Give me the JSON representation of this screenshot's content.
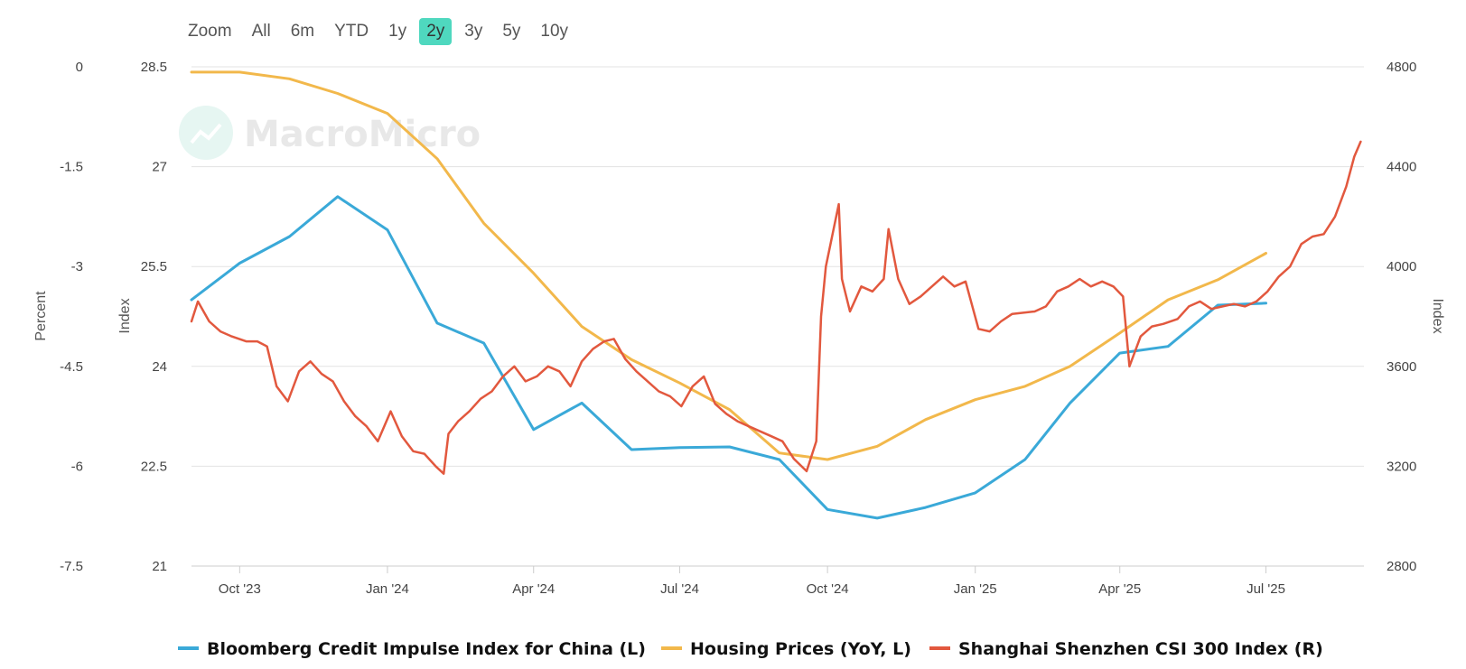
{
  "zoom": {
    "label": "Zoom",
    "buttons": [
      "All",
      "6m",
      "YTD",
      "1y",
      "2y",
      "3y",
      "5y",
      "10y"
    ],
    "active": "2y",
    "active_color": "#4fd8bf"
  },
  "watermark": {
    "text": "MacroMicro"
  },
  "chart_data": {
    "type": "line",
    "x_ticks": [
      "Oct '23",
      "Jan '24",
      "Apr '24",
      "Jul '24",
      "Oct '24",
      "Jan '25",
      "Apr '25",
      "Jul '25"
    ],
    "x_tick_dates": [
      "2023-10-01",
      "2024-01-01",
      "2024-04-01",
      "2024-07-01",
      "2024-10-01",
      "2025-01-01",
      "2025-04-01",
      "2025-07-01"
    ],
    "x_range": [
      "2023-09-01",
      "2025-08-31"
    ],
    "axes": {
      "percent": {
        "label": "Percent",
        "ticks": [
          "0",
          "-1.5",
          "-3",
          "-4.5",
          "-6",
          "-7.5"
        ],
        "range": [
          -7.5,
          0
        ]
      },
      "index_left": {
        "label": "Index",
        "ticks": [
          "28.5",
          "27",
          "25.5",
          "24",
          "22.5",
          "21"
        ],
        "range": [
          21,
          28.5
        ]
      },
      "index_right": {
        "label": "Index",
        "ticks": [
          "4800",
          "4400",
          "4000",
          "3600",
          "3200",
          "2800"
        ],
        "range": [
          2800,
          4800
        ]
      }
    },
    "grid": true,
    "legend_position": "bottom",
    "series": [
      {
        "name": "Bloomberg Credit Impulse Index for China (L)",
        "color": "#3aa9d8",
        "axis": "index_left",
        "points": [
          [
            "2023-09-01",
            25.0
          ],
          [
            "2023-10-01",
            25.55
          ],
          [
            "2023-11-01",
            25.95
          ],
          [
            "2023-12-01",
            26.55
          ],
          [
            "2024-01-01",
            26.05
          ],
          [
            "2024-02-01",
            24.65
          ],
          [
            "2024-03-01",
            24.35
          ],
          [
            "2024-04-01",
            23.05
          ],
          [
            "2024-05-01",
            23.45
          ],
          [
            "2024-06-01",
            22.75
          ],
          [
            "2024-07-01",
            22.78
          ],
          [
            "2024-08-01",
            22.79
          ],
          [
            "2024-09-01",
            22.6
          ],
          [
            "2024-10-01",
            21.85
          ],
          [
            "2024-11-01",
            21.72
          ],
          [
            "2024-12-01",
            21.88
          ],
          [
            "2025-01-01",
            22.1
          ],
          [
            "2025-02-01",
            22.6
          ],
          [
            "2025-03-01",
            23.45
          ],
          [
            "2025-04-01",
            24.2
          ],
          [
            "2025-05-01",
            24.3
          ],
          [
            "2025-06-01",
            24.92
          ],
          [
            "2025-07-01",
            24.95
          ]
        ]
      },
      {
        "name": "Housing Prices (YoY, L)",
        "color": "#f2b84b",
        "axis": "index_left",
        "points": [
          [
            "2023-09-01",
            28.42
          ],
          [
            "2023-10-01",
            28.42
          ],
          [
            "2023-11-01",
            28.32
          ],
          [
            "2023-12-01",
            28.1
          ],
          [
            "2024-01-01",
            27.8
          ],
          [
            "2024-02-01",
            27.12
          ],
          [
            "2024-03-01",
            26.15
          ],
          [
            "2024-04-01",
            25.4
          ],
          [
            "2024-05-01",
            24.6
          ],
          [
            "2024-06-01",
            24.1
          ],
          [
            "2024-07-01",
            23.75
          ],
          [
            "2024-08-01",
            23.35
          ],
          [
            "2024-09-01",
            22.7
          ],
          [
            "2024-10-01",
            22.6
          ],
          [
            "2024-11-01",
            22.8
          ],
          [
            "2024-12-01",
            23.2
          ],
          [
            "2025-01-01",
            23.5
          ],
          [
            "2025-02-01",
            23.7
          ],
          [
            "2025-03-01",
            24.0
          ],
          [
            "2025-04-01",
            24.5
          ],
          [
            "2025-05-01",
            25.0
          ],
          [
            "2025-06-01",
            25.3
          ],
          [
            "2025-07-01",
            25.7
          ]
        ]
      },
      {
        "name": "Shanghai Shenzhen CSI 300 Index (R)",
        "color": "#e2583e",
        "axis": "index_right",
        "points": [
          [
            "2023-09-01",
            3780
          ],
          [
            "2023-09-05",
            3860
          ],
          [
            "2023-09-12",
            3780
          ],
          [
            "2023-09-19",
            3740
          ],
          [
            "2023-09-26",
            3720
          ],
          [
            "2023-10-05",
            3700
          ],
          [
            "2023-10-12",
            3700
          ],
          [
            "2023-10-18",
            3680
          ],
          [
            "2023-10-24",
            3520
          ],
          [
            "2023-10-31",
            3460
          ],
          [
            "2023-11-07",
            3580
          ],
          [
            "2023-11-14",
            3620
          ],
          [
            "2023-11-21",
            3570
          ],
          [
            "2023-11-28",
            3540
          ],
          [
            "2023-12-05",
            3460
          ],
          [
            "2023-12-12",
            3400
          ],
          [
            "2023-12-19",
            3360
          ],
          [
            "2023-12-26",
            3300
          ],
          [
            "2024-01-03",
            3420
          ],
          [
            "2024-01-10",
            3320
          ],
          [
            "2024-01-17",
            3260
          ],
          [
            "2024-01-24",
            3250
          ],
          [
            "2024-01-31",
            3200
          ],
          [
            "2024-02-05",
            3170
          ],
          [
            "2024-02-08",
            3330
          ],
          [
            "2024-02-14",
            3380
          ],
          [
            "2024-02-21",
            3420
          ],
          [
            "2024-02-28",
            3470
          ],
          [
            "2024-03-06",
            3500
          ],
          [
            "2024-03-13",
            3560
          ],
          [
            "2024-03-20",
            3600
          ],
          [
            "2024-03-27",
            3540
          ],
          [
            "2024-04-03",
            3560
          ],
          [
            "2024-04-10",
            3600
          ],
          [
            "2024-04-17",
            3580
          ],
          [
            "2024-04-24",
            3520
          ],
          [
            "2024-05-01",
            3620
          ],
          [
            "2024-05-08",
            3670
          ],
          [
            "2024-05-15",
            3700
          ],
          [
            "2024-05-21",
            3710
          ],
          [
            "2024-05-28",
            3630
          ],
          [
            "2024-06-04",
            3580
          ],
          [
            "2024-06-11",
            3540
          ],
          [
            "2024-06-18",
            3500
          ],
          [
            "2024-06-25",
            3480
          ],
          [
            "2024-07-02",
            3440
          ],
          [
            "2024-07-09",
            3520
          ],
          [
            "2024-07-16",
            3560
          ],
          [
            "2024-07-23",
            3450
          ],
          [
            "2024-07-30",
            3410
          ],
          [
            "2024-08-06",
            3380
          ],
          [
            "2024-08-13",
            3360
          ],
          [
            "2024-08-20",
            3340
          ],
          [
            "2024-08-27",
            3320
          ],
          [
            "2024-09-03",
            3300
          ],
          [
            "2024-09-10",
            3230
          ],
          [
            "2024-09-18",
            3180
          ],
          [
            "2024-09-24",
            3300
          ],
          [
            "2024-09-27",
            3800
          ],
          [
            "2024-09-30",
            4000
          ],
          [
            "2024-10-08",
            4250
          ],
          [
            "2024-10-10",
            3950
          ],
          [
            "2024-10-15",
            3820
          ],
          [
            "2024-10-22",
            3920
          ],
          [
            "2024-10-29",
            3900
          ],
          [
            "2024-11-05",
            3950
          ],
          [
            "2024-11-08",
            4150
          ],
          [
            "2024-11-14",
            3950
          ],
          [
            "2024-11-21",
            3850
          ],
          [
            "2024-11-28",
            3880
          ],
          [
            "2024-12-05",
            3920
          ],
          [
            "2024-12-12",
            3960
          ],
          [
            "2024-12-19",
            3920
          ],
          [
            "2024-12-26",
            3940
          ],
          [
            "2025-01-03",
            3750
          ],
          [
            "2025-01-10",
            3740
          ],
          [
            "2025-01-17",
            3780
          ],
          [
            "2025-01-24",
            3810
          ],
          [
            "2025-02-07",
            3820
          ],
          [
            "2025-02-14",
            3840
          ],
          [
            "2025-02-21",
            3900
          ],
          [
            "2025-02-28",
            3920
          ],
          [
            "2025-03-07",
            3950
          ],
          [
            "2025-03-14",
            3920
          ],
          [
            "2025-03-21",
            3940
          ],
          [
            "2025-03-28",
            3920
          ],
          [
            "2025-04-03",
            3880
          ],
          [
            "2025-04-07",
            3600
          ],
          [
            "2025-04-14",
            3720
          ],
          [
            "2025-04-21",
            3760
          ],
          [
            "2025-04-28",
            3770
          ],
          [
            "2025-05-07",
            3790
          ],
          [
            "2025-05-14",
            3840
          ],
          [
            "2025-05-21",
            3860
          ],
          [
            "2025-05-28",
            3830
          ],
          [
            "2025-06-04",
            3840
          ],
          [
            "2025-06-11",
            3850
          ],
          [
            "2025-06-18",
            3840
          ],
          [
            "2025-06-25",
            3860
          ],
          [
            "2025-07-02",
            3900
          ],
          [
            "2025-07-09",
            3960
          ],
          [
            "2025-07-16",
            4000
          ],
          [
            "2025-07-23",
            4090
          ],
          [
            "2025-07-30",
            4120
          ],
          [
            "2025-08-06",
            4130
          ],
          [
            "2025-08-13",
            4200
          ],
          [
            "2025-08-20",
            4320
          ],
          [
            "2025-08-25",
            4440
          ],
          [
            "2025-08-29",
            4500
          ]
        ]
      }
    ]
  }
}
